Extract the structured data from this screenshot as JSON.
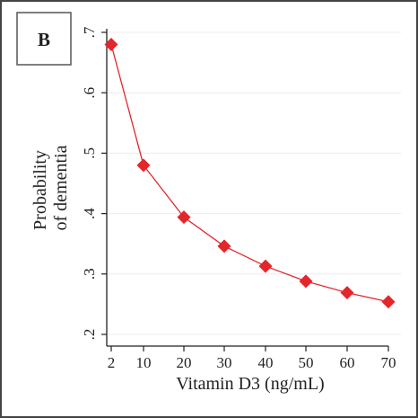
{
  "panel_label": "B",
  "chart_data": {
    "type": "line",
    "title": "",
    "xlabel": "Vitamin D3 (ng/mL)",
    "ylabel_lines": [
      "Probability",
      "of dementia"
    ],
    "x": [
      2,
      10,
      20,
      30,
      40,
      50,
      60,
      70
    ],
    "x_tick_labels": [
      "2",
      "10",
      "20",
      "30",
      "40",
      "50",
      "60",
      "70"
    ],
    "y_ticks": [
      0.2,
      0.3,
      0.4,
      0.5,
      0.6,
      0.7
    ],
    "y_tick_labels": [
      ".2",
      ".3",
      ".4",
      ".5",
      ".6",
      ".7"
    ],
    "ylim": [
      0.2,
      0.7
    ],
    "grid": true,
    "series": [
      {
        "values": [
          0.68,
          0.48,
          0.394,
          0.346,
          0.313,
          0.288,
          0.269,
          0.254
        ],
        "color": "#e3262b",
        "marker": "diamond"
      }
    ]
  }
}
